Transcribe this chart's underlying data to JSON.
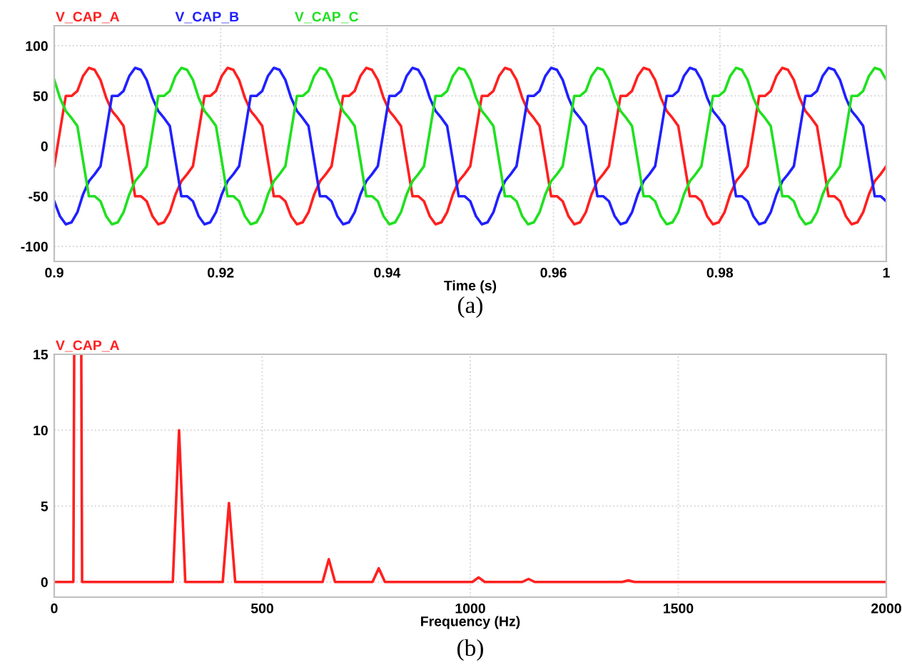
{
  "chart_data": [
    {
      "type": "line",
      "xlabel": "Time (s)",
      "legend": "top left",
      "grid": true,
      "annotations": [
        "(a)"
      ],
      "xlim": [
        0.9,
        1.0
      ],
      "ylim": [
        -115,
        120
      ],
      "xticks": [
        0.9,
        0.92,
        0.94,
        0.96,
        0.98,
        1
      ],
      "yticks": [
        -100,
        -50,
        0,
        50,
        100
      ],
      "x": [
        0.9,
        0.90069,
        0.90139,
        0.90208,
        0.90278,
        0.90347,
        0.90417,
        0.90486,
        0.90556,
        0.90625,
        0.90694,
        0.90764,
        0.90833,
        0.90903,
        0.90972,
        0.91042,
        0.91111,
        0.91181,
        0.9125,
        0.91319,
        0.91389,
        0.91458,
        0.91528,
        0.91597,
        0.91667,
        0.91736,
        0.91806,
        0.91875,
        0.91944,
        0.92014,
        0.92083,
        0.92153,
        0.92222,
        0.92292,
        0.92361,
        0.92431,
        0.925,
        0.92569,
        0.92639,
        0.92708,
        0.92778,
        0.92847,
        0.92917,
        0.92986,
        0.93056,
        0.93125,
        0.93194,
        0.93264,
        0.93333,
        0.93403,
        0.93472,
        0.93542,
        0.93611,
        0.93681,
        0.9375,
        0.93819,
        0.93889,
        0.93958,
        0.94028,
        0.94097,
        0.94167,
        0.94236,
        0.94306,
        0.94375,
        0.94444,
        0.94514,
        0.94583,
        0.94653,
        0.94722,
        0.94792,
        0.94861,
        0.94931,
        0.95,
        0.95069,
        0.95139,
        0.95208,
        0.95278,
        0.95347,
        0.95417,
        0.95486,
        0.95556,
        0.95625,
        0.95694,
        0.95764,
        0.95833,
        0.95903,
        0.95972,
        0.96042,
        0.96111,
        0.96181,
        0.9625,
        0.96319,
        0.96389,
        0.96458,
        0.96528,
        0.96597,
        0.96667,
        0.96736,
        0.96806,
        0.96875,
        0.96944,
        0.97014,
        0.97083,
        0.97153,
        0.97222,
        0.97292,
        0.97361,
        0.97431,
        0.975,
        0.97569,
        0.97639,
        0.97708,
        0.97778,
        0.97847,
        0.97917,
        0.97986,
        0.98056,
        0.98125,
        0.98194,
        0.98264,
        0.98333,
        0.98403,
        0.98472,
        0.98542,
        0.98611,
        0.98681,
        0.9875,
        0.98819,
        0.98889,
        0.98958,
        0.99028,
        0.99097,
        0.99167,
        0.99236,
        0.99306,
        0.99375,
        0.99444,
        0.99514,
        0.99583,
        0.99653,
        0.99722,
        0.99792,
        0.99861,
        0.99931,
        1.0
      ],
      "series": [
        {
          "name": "V_CAP_A",
          "color": "#ff2020",
          "values": [
            -20,
            15,
            50,
            50,
            55,
            70,
            78,
            76,
            66,
            48,
            35,
            28,
            20,
            -15,
            -50,
            -50,
            -55,
            -70,
            -78,
            -76,
            -66,
            -48,
            -35,
            -28,
            -20,
            15,
            50,
            50,
            55,
            70,
            78,
            76,
            66,
            48,
            35,
            28,
            20,
            -15,
            -50,
            -50,
            -55,
            -70,
            -78,
            -76,
            -66,
            -48,
            -35,
            -28,
            -20,
            15,
            50,
            50,
            55,
            70,
            78,
            76,
            66,
            48,
            35,
            28,
            20,
            -15,
            -50,
            -50,
            -55,
            -70,
            -78,
            -76,
            -66,
            -48,
            -35,
            -28,
            -20,
            15,
            50,
            50,
            55,
            70,
            78,
            76,
            66,
            48,
            35,
            28,
            20,
            -15,
            -50,
            -50,
            -55,
            -70,
            -78,
            -76,
            -66,
            -48,
            -35,
            -28,
            -20,
            15,
            50,
            50,
            55,
            70,
            78,
            76,
            66,
            48,
            35,
            28,
            20,
            -15,
            -50,
            -50,
            -55,
            -70,
            -78,
            -76,
            -66,
            -48,
            -35,
            -28,
            -20,
            15,
            50,
            50,
            55,
            70,
            78,
            76,
            66,
            48,
            35,
            28,
            20,
            -15,
            -50,
            -50,
            -55,
            -70,
            -78,
            -76,
            -66,
            -48,
            -35,
            -28,
            -20
          ]
        },
        {
          "name": "V_CAP_B",
          "color": "#2020ff",
          "values": [
            -55,
            -70,
            -78,
            -76,
            -66,
            -48,
            -35,
            -28,
            -20,
            15,
            50,
            50,
            55,
            70,
            78,
            76,
            66,
            48,
            35,
            28,
            20,
            -15,
            -50,
            -50,
            -55,
            -70,
            -78,
            -76,
            -66,
            -48,
            -35,
            -28,
            -20,
            15,
            50,
            50,
            55,
            70,
            78,
            76,
            66,
            48,
            35,
            28,
            20,
            -15,
            -50,
            -50,
            -55,
            -70,
            -78,
            -76,
            -66,
            -48,
            -35,
            -28,
            -20,
            15,
            50,
            50,
            55,
            70,
            78,
            76,
            66,
            48,
            35,
            28,
            20,
            -15,
            -50,
            -50,
            -55,
            -70,
            -78,
            -76,
            -66,
            -48,
            -35,
            -28,
            -20,
            15,
            50,
            50,
            55,
            70,
            78,
            76,
            66,
            48,
            35,
            28,
            20,
            -15,
            -50,
            -50,
            -55,
            -70,
            -78,
            -76,
            -66,
            -48,
            -35,
            -28,
            -20,
            15,
            50,
            50,
            55,
            70,
            78,
            76,
            66,
            48,
            35,
            28,
            20,
            -15,
            -50,
            -50,
            -55,
            -70,
            -78,
            -76,
            -66,
            -48,
            -35,
            -28,
            -20,
            15,
            50,
            50,
            55,
            70,
            78,
            76,
            66,
            48,
            35,
            28,
            20,
            -15,
            -50,
            -50,
            -55
          ]
        },
        {
          "name": "V_CAP_C",
          "color": "#20e020",
          "values": [
            66,
            48,
            35,
            28,
            20,
            -15,
            -50,
            -50,
            -55,
            -70,
            -78,
            -76,
            -66,
            -48,
            -35,
            -28,
            -20,
            15,
            50,
            50,
            55,
            70,
            78,
            76,
            66,
            48,
            35,
            28,
            20,
            -15,
            -50,
            -50,
            -55,
            -70,
            -78,
            -76,
            -66,
            -48,
            -35,
            -28,
            -20,
            15,
            50,
            50,
            55,
            70,
            78,
            76,
            66,
            48,
            35,
            28,
            20,
            -15,
            -50,
            -50,
            -55,
            -70,
            -78,
            -76,
            -66,
            -48,
            -35,
            -28,
            -20,
            15,
            50,
            50,
            55,
            70,
            78,
            76,
            66,
            48,
            35,
            28,
            20,
            -15,
            -50,
            -50,
            -55,
            -70,
            -78,
            -76,
            -66,
            -48,
            -35,
            -28,
            -20,
            15,
            50,
            50,
            55,
            70,
            78,
            76,
            66,
            48,
            35,
            28,
            20,
            -15,
            -50,
            -50,
            -55,
            -70,
            -78,
            -76,
            -66,
            -48,
            -35,
            -28,
            -20,
            15,
            50,
            50,
            55,
            70,
            78,
            76,
            66,
            48,
            35,
            28,
            20,
            -15,
            -50,
            -50,
            -55,
            -70,
            -78,
            -76,
            -66,
            -48,
            -35,
            -28,
            -20,
            15,
            50,
            50,
            55,
            70,
            78,
            76,
            66
          ]
        }
      ]
    },
    {
      "type": "line",
      "xlabel": "Frequency (Hz)",
      "legend": "top left",
      "grid": true,
      "annotations": [
        "(b)"
      ],
      "xlim": [
        0,
        2000
      ],
      "ylim": [
        -1,
        15
      ],
      "xticks": [
        0,
        500,
        1000,
        1500,
        2000
      ],
      "yticks": [
        0,
        5,
        10,
        15
      ],
      "series": [
        {
          "name": "V_CAP_A",
          "color": "#ff2020",
          "x": [
            0,
            46,
            48,
            57,
            65,
            67,
            285,
            300,
            315,
            405,
            420,
            435,
            645,
            660,
            675,
            765,
            780,
            795,
            1005,
            1020,
            1035,
            1125,
            1140,
            1155,
            1365,
            1380,
            1395,
            2000
          ],
          "values": [
            0,
            0,
            15,
            null,
            15,
            0,
            0,
            10,
            0,
            0,
            5.2,
            0,
            0,
            1.5,
            0,
            0,
            0.9,
            0,
            0,
            0.3,
            0,
            0,
            0.2,
            0,
            0,
            0.1,
            0,
            0
          ]
        }
      ]
    }
  ]
}
